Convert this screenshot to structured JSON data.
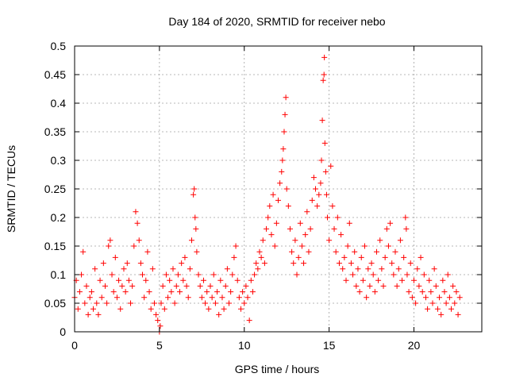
{
  "chart_data": {
    "type": "scatter",
    "title": "Day 184 of 2020, SRMTID for receiver nebo",
    "xlabel": "GPS time / hours",
    "ylabel": "SRMTID / TECUs",
    "xlim": [
      0,
      24
    ],
    "ylim": [
      0,
      0.5
    ],
    "xticks": [
      0,
      5,
      10,
      15,
      20
    ],
    "yticks": [
      0,
      0.05,
      0.1,
      0.15,
      0.2,
      0.25,
      0.3,
      0.35,
      0.4,
      0.45,
      0.5
    ],
    "xtick_labels": [
      "0",
      "5",
      "10",
      "15",
      "20"
    ],
    "ytick_labels": [
      "0",
      "0.05",
      "0.1",
      "0.15",
      "0.2",
      "0.25",
      "0.3",
      "0.35",
      "0.4",
      "0.45",
      "0.5"
    ],
    "grid": true,
    "marker": "plus",
    "series_color": "#ff0000",
    "series": [
      {
        "name": "SRMTID",
        "points": [
          [
            0.0,
            0.06
          ],
          [
            0.1,
            0.09
          ],
          [
            0.2,
            0.04
          ],
          [
            0.3,
            0.07
          ],
          [
            0.4,
            0.1
          ],
          [
            0.5,
            0.14
          ],
          [
            0.6,
            0.05
          ],
          [
            0.7,
            0.08
          ],
          [
            0.8,
            0.03
          ],
          [
            0.9,
            0.06
          ],
          [
            1.0,
            0.07
          ],
          [
            1.1,
            0.04
          ],
          [
            1.2,
            0.11
          ],
          [
            1.3,
            0.05
          ],
          [
            1.4,
            0.03
          ],
          [
            1.5,
            0.09
          ],
          [
            1.6,
            0.06
          ],
          [
            1.7,
            0.12
          ],
          [
            1.8,
            0.08
          ],
          [
            1.9,
            0.05
          ],
          [
            2.0,
            0.15
          ],
          [
            2.1,
            0.16
          ],
          [
            2.2,
            0.1
          ],
          [
            2.3,
            0.07
          ],
          [
            2.4,
            0.13
          ],
          [
            2.5,
            0.06
          ],
          [
            2.6,
            0.09
          ],
          [
            2.7,
            0.04
          ],
          [
            2.8,
            0.08
          ],
          [
            2.9,
            0.11
          ],
          [
            3.0,
            0.07
          ],
          [
            3.1,
            0.12
          ],
          [
            3.2,
            0.09
          ],
          [
            3.3,
            0.05
          ],
          [
            3.4,
            0.08
          ],
          [
            3.5,
            0.15
          ],
          [
            3.6,
            0.21
          ],
          [
            3.7,
            0.19
          ],
          [
            3.8,
            0.16
          ],
          [
            3.9,
            0.12
          ],
          [
            4.0,
            0.1
          ],
          [
            4.1,
            0.06
          ],
          [
            4.2,
            0.09
          ],
          [
            4.3,
            0.14
          ],
          [
            4.4,
            0.07
          ],
          [
            4.5,
            0.04
          ],
          [
            4.6,
            0.11
          ],
          [
            4.7,
            0.05
          ],
          [
            4.8,
            0.03
          ],
          [
            4.9,
            0.02
          ],
          [
            5.0,
            0.0
          ],
          [
            5.05,
            0.01
          ],
          [
            5.1,
            0.05
          ],
          [
            5.2,
            0.08
          ],
          [
            5.3,
            0.04
          ],
          [
            5.4,
            0.1
          ],
          [
            5.5,
            0.06
          ],
          [
            5.6,
            0.09
          ],
          [
            5.7,
            0.07
          ],
          [
            5.8,
            0.11
          ],
          [
            5.9,
            0.05
          ],
          [
            6.0,
            0.08
          ],
          [
            6.1,
            0.1
          ],
          [
            6.2,
            0.07
          ],
          [
            6.3,
            0.12
          ],
          [
            6.4,
            0.09
          ],
          [
            6.5,
            0.13
          ],
          [
            6.6,
            0.08
          ],
          [
            6.7,
            0.06
          ],
          [
            6.8,
            0.11
          ],
          [
            6.9,
            0.16
          ],
          [
            7.0,
            0.24
          ],
          [
            7.05,
            0.25
          ],
          [
            7.1,
            0.2
          ],
          [
            7.15,
            0.18
          ],
          [
            7.2,
            0.14
          ],
          [
            7.3,
            0.1
          ],
          [
            7.4,
            0.08
          ],
          [
            7.5,
            0.06
          ],
          [
            7.6,
            0.09
          ],
          [
            7.7,
            0.05
          ],
          [
            7.8,
            0.07
          ],
          [
            7.9,
            0.04
          ],
          [
            8.0,
            0.08
          ],
          [
            8.1,
            0.06
          ],
          [
            8.2,
            0.1
          ],
          [
            8.3,
            0.05
          ],
          [
            8.4,
            0.07
          ],
          [
            8.5,
            0.03
          ],
          [
            8.6,
            0.09
          ],
          [
            8.7,
            0.06
          ],
          [
            8.8,
            0.04
          ],
          [
            8.9,
            0.08
          ],
          [
            9.0,
            0.11
          ],
          [
            9.1,
            0.05
          ],
          [
            9.2,
            0.07
          ],
          [
            9.3,
            0.1
          ],
          [
            9.4,
            0.13
          ],
          [
            9.5,
            0.15
          ],
          [
            9.6,
            0.09
          ],
          [
            9.7,
            0.06
          ],
          [
            9.8,
            0.04
          ],
          [
            9.9,
            0.07
          ],
          [
            10.0,
            0.05
          ],
          [
            10.1,
            0.08
          ],
          [
            10.2,
            0.06
          ],
          [
            10.3,
            0.02
          ],
          [
            10.4,
            0.09
          ],
          [
            10.5,
            0.07
          ],
          [
            10.6,
            0.1
          ],
          [
            10.7,
            0.12
          ],
          [
            10.8,
            0.11
          ],
          [
            10.9,
            0.14
          ],
          [
            11.0,
            0.13
          ],
          [
            11.1,
            0.16
          ],
          [
            11.2,
            0.12
          ],
          [
            11.3,
            0.18
          ],
          [
            11.4,
            0.2
          ],
          [
            11.5,
            0.22
          ],
          [
            11.6,
            0.17
          ],
          [
            11.7,
            0.24
          ],
          [
            11.8,
            0.15
          ],
          [
            11.9,
            0.19
          ],
          [
            12.0,
            0.23
          ],
          [
            12.1,
            0.26
          ],
          [
            12.2,
            0.28
          ],
          [
            12.25,
            0.3
          ],
          [
            12.3,
            0.32
          ],
          [
            12.35,
            0.35
          ],
          [
            12.4,
            0.38
          ],
          [
            12.45,
            0.41
          ],
          [
            12.5,
            0.25
          ],
          [
            12.6,
            0.22
          ],
          [
            12.7,
            0.18
          ],
          [
            12.8,
            0.14
          ],
          [
            12.9,
            0.12
          ],
          [
            13.0,
            0.16
          ],
          [
            13.1,
            0.1
          ],
          [
            13.2,
            0.13
          ],
          [
            13.3,
            0.19
          ],
          [
            13.4,
            0.15
          ],
          [
            13.5,
            0.12
          ],
          [
            13.6,
            0.17
          ],
          [
            13.7,
            0.21
          ],
          [
            13.8,
            0.14
          ],
          [
            13.9,
            0.18
          ],
          [
            14.0,
            0.23
          ],
          [
            14.1,
            0.27
          ],
          [
            14.2,
            0.25
          ],
          [
            14.3,
            0.22
          ],
          [
            14.4,
            0.24
          ],
          [
            14.5,
            0.26
          ],
          [
            14.55,
            0.3
          ],
          [
            14.6,
            0.37
          ],
          [
            14.65,
            0.44
          ],
          [
            14.7,
            0.45
          ],
          [
            14.72,
            0.48
          ],
          [
            14.75,
            0.33
          ],
          [
            14.8,
            0.28
          ],
          [
            14.85,
            0.24
          ],
          [
            14.9,
            0.2
          ],
          [
            15.0,
            0.16
          ],
          [
            15.1,
            0.29
          ],
          [
            15.2,
            0.22
          ],
          [
            15.3,
            0.18
          ],
          [
            15.4,
            0.14
          ],
          [
            15.5,
            0.2
          ],
          [
            15.6,
            0.12
          ],
          [
            15.7,
            0.17
          ],
          [
            15.8,
            0.11
          ],
          [
            15.9,
            0.13
          ],
          [
            16.0,
            0.09
          ],
          [
            16.1,
            0.15
          ],
          [
            16.2,
            0.19
          ],
          [
            16.3,
            0.12
          ],
          [
            16.4,
            0.1
          ],
          [
            16.5,
            0.14
          ],
          [
            16.6,
            0.08
          ],
          [
            16.7,
            0.11
          ],
          [
            16.8,
            0.07
          ],
          [
            16.9,
            0.13
          ],
          [
            17.0,
            0.09
          ],
          [
            17.1,
            0.15
          ],
          [
            17.2,
            0.06
          ],
          [
            17.3,
            0.11
          ],
          [
            17.4,
            0.08
          ],
          [
            17.5,
            0.12
          ],
          [
            17.6,
            0.1
          ],
          [
            17.7,
            0.07
          ],
          [
            17.8,
            0.14
          ],
          [
            17.9,
            0.09
          ],
          [
            18.0,
            0.16
          ],
          [
            18.1,
            0.11
          ],
          [
            18.2,
            0.08
          ],
          [
            18.3,
            0.13
          ],
          [
            18.4,
            0.18
          ],
          [
            18.5,
            0.15
          ],
          [
            18.6,
            0.19
          ],
          [
            18.7,
            0.12
          ],
          [
            18.8,
            0.1
          ],
          [
            18.9,
            0.14
          ],
          [
            19.0,
            0.08
          ],
          [
            19.1,
            0.11
          ],
          [
            19.2,
            0.16
          ],
          [
            19.3,
            0.09
          ],
          [
            19.4,
            0.13
          ],
          [
            19.5,
            0.2
          ],
          [
            19.55,
            0.18
          ],
          [
            19.6,
            0.1
          ],
          [
            19.7,
            0.07
          ],
          [
            19.8,
            0.12
          ],
          [
            19.9,
            0.06
          ],
          [
            20.0,
            0.09
          ],
          [
            20.1,
            0.05
          ],
          [
            20.2,
            0.11
          ],
          [
            20.3,
            0.08
          ],
          [
            20.4,
            0.13
          ],
          [
            20.5,
            0.07
          ],
          [
            20.6,
            0.1
          ],
          [
            20.7,
            0.06
          ],
          [
            20.8,
            0.04
          ],
          [
            20.9,
            0.09
          ],
          [
            21.0,
            0.07
          ],
          [
            21.1,
            0.05
          ],
          [
            21.2,
            0.11
          ],
          [
            21.3,
            0.08
          ],
          [
            21.4,
            0.04
          ],
          [
            21.5,
            0.06
          ],
          [
            21.6,
            0.03
          ],
          [
            21.7,
            0.09
          ],
          [
            21.8,
            0.07
          ],
          [
            21.9,
            0.05
          ],
          [
            22.0,
            0.1
          ],
          [
            22.1,
            0.06
          ],
          [
            22.2,
            0.04
          ],
          [
            22.3,
            0.08
          ],
          [
            22.4,
            0.05
          ],
          [
            22.5,
            0.07
          ],
          [
            22.6,
            0.03
          ],
          [
            22.7,
            0.06
          ]
        ]
      }
    ]
  }
}
